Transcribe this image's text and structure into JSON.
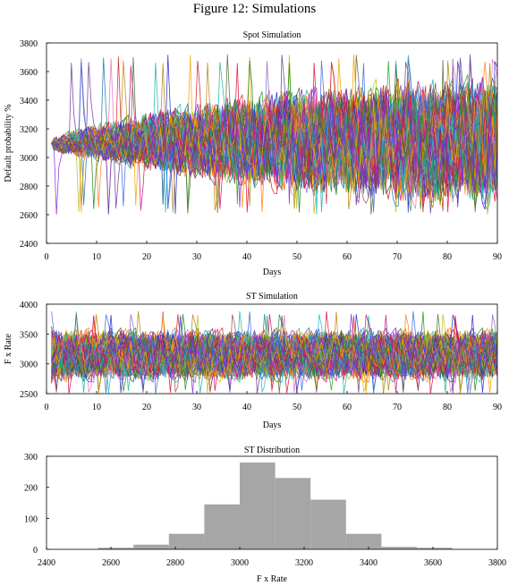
{
  "figure_title": "Figure 12: Simulations",
  "chart_data": [
    {
      "type": "line",
      "title": "Spot Simulation",
      "xlabel": "Days",
      "ylabel": "Default probability %",
      "xlim": [
        0,
        90
      ],
      "ylim": [
        2400,
        3800
      ],
      "xticks": [
        0,
        10,
        20,
        30,
        40,
        50,
        60,
        70,
        80,
        90
      ],
      "yticks": [
        2400,
        2600,
        2800,
        3000,
        3200,
        3400,
        3600,
        3800
      ],
      "x_start": 1,
      "x_end": 90,
      "start_value": 3100,
      "band_lower": [
        [
          1,
          3040
        ],
        [
          10,
          2990
        ],
        [
          20,
          2920
        ],
        [
          30,
          2860
        ],
        [
          40,
          2810
        ],
        [
          50,
          2770
        ],
        [
          60,
          2740
        ],
        [
          70,
          2710
        ],
        [
          80,
          2700
        ],
        [
          90,
          2690
        ]
      ],
      "band_upper": [
        [
          1,
          3140
        ],
        [
          10,
          3230
        ],
        [
          20,
          3300
        ],
        [
          30,
          3360
        ],
        [
          40,
          3420
        ],
        [
          50,
          3450
        ],
        [
          60,
          3480
        ],
        [
          70,
          3510
        ],
        [
          80,
          3520
        ],
        [
          90,
          3540
        ]
      ],
      "extreme_max": 3720,
      "extreme_min": 2600,
      "n_paths_approx": 100,
      "grid": false,
      "legend": false
    },
    {
      "type": "line",
      "title": "ST Simulation",
      "xlabel": "Days",
      "ylabel": "F x Rate",
      "xlim": [
        0,
        90
      ],
      "ylim": [
        2500,
        4000
      ],
      "xticks": [
        0,
        10,
        20,
        30,
        40,
        50,
        60,
        70,
        80,
        90
      ],
      "yticks": [
        2500,
        3000,
        3500,
        4000
      ],
      "x_start": 1,
      "x_end": 90,
      "band_lower": [
        [
          0,
          2750
        ],
        [
          90,
          2750
        ]
      ],
      "band_upper": [
        [
          0,
          3550
        ],
        [
          90,
          3550
        ]
      ],
      "extreme_max": 3880,
      "extreme_min": 2500,
      "n_paths_approx": 100,
      "grid": false,
      "legend": false
    },
    {
      "type": "bar",
      "title": "ST Distribution",
      "xlabel": "F x Rate",
      "ylabel": "",
      "xlim": [
        2400,
        3800
      ],
      "ylim": [
        0,
        300
      ],
      "xticks": [
        2400,
        2600,
        2800,
        3000,
        3200,
        3400,
        3600,
        3800
      ],
      "yticks": [
        0,
        100,
        200,
        300
      ],
      "bins": [
        {
          "x0": 2560,
          "x1": 2670,
          "count": 5
        },
        {
          "x0": 2670,
          "x1": 2780,
          "count": 15
        },
        {
          "x0": 2780,
          "x1": 2890,
          "count": 50
        },
        {
          "x0": 2890,
          "x1": 3000,
          "count": 145
        },
        {
          "x0": 3000,
          "x1": 3110,
          "count": 280
        },
        {
          "x0": 3110,
          "x1": 3220,
          "count": 230
        },
        {
          "x0": 3220,
          "x1": 3330,
          "count": 160
        },
        {
          "x0": 3330,
          "x1": 3440,
          "count": 50
        },
        {
          "x0": 3440,
          "x1": 3550,
          "count": 8
        },
        {
          "x0": 3550,
          "x1": 3660,
          "count": 5
        }
      ],
      "bar_color": "#a6a6a6",
      "grid": false,
      "legend": false
    }
  ]
}
